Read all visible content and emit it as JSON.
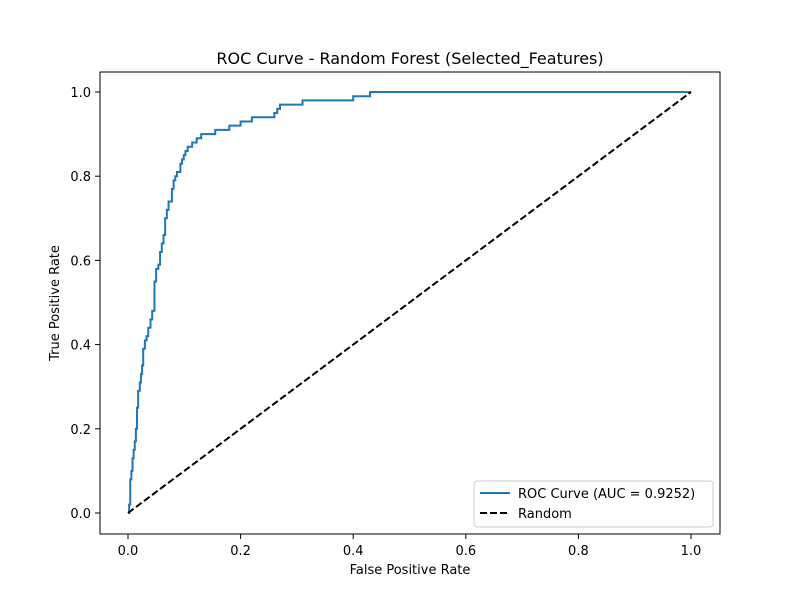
{
  "chart_data": {
    "type": "line",
    "title": "ROC Curve - Random Forest (Selected_Features)",
    "xlabel": "False Positive Rate",
    "ylabel": "True Positive Rate",
    "xlim": [
      0.0,
      1.0
    ],
    "ylim": [
      0.0,
      1.0
    ],
    "xticks": [
      "0.0",
      "0.2",
      "0.4",
      "0.6",
      "0.8",
      "1.0"
    ],
    "yticks": [
      "0.0",
      "0.2",
      "0.4",
      "0.6",
      "0.8",
      "1.0"
    ],
    "grid": false,
    "legend_position": "lower right",
    "series": [
      {
        "name": "ROC Curve (AUC = 0.9252)",
        "color": "#1f77b4",
        "style": "solid",
        "x": [
          0.0,
          0.002,
          0.002,
          0.004,
          0.004,
          0.006,
          0.006,
          0.008,
          0.008,
          0.01,
          0.01,
          0.012,
          0.012,
          0.014,
          0.014,
          0.016,
          0.016,
          0.018,
          0.018,
          0.021,
          0.021,
          0.023,
          0.023,
          0.025,
          0.025,
          0.027,
          0.027,
          0.03,
          0.03,
          0.033,
          0.033,
          0.036,
          0.036,
          0.04,
          0.04,
          0.043,
          0.043,
          0.047,
          0.047,
          0.05,
          0.05,
          0.054,
          0.054,
          0.057,
          0.057,
          0.06,
          0.06,
          0.063,
          0.063,
          0.066,
          0.066,
          0.069,
          0.069,
          0.072,
          0.072,
          0.075,
          0.075,
          0.078,
          0.078,
          0.081,
          0.081,
          0.084,
          0.084,
          0.087,
          0.087,
          0.09,
          0.09,
          0.093,
          0.093,
          0.096,
          0.096,
          0.099,
          0.099,
          0.102,
          0.102,
          0.106,
          0.106,
          0.11,
          0.11,
          0.114,
          0.114,
          0.118,
          0.118,
          0.122,
          0.122,
          0.126,
          0.126,
          0.13,
          0.13,
          0.135,
          0.135,
          0.14,
          0.14,
          0.145,
          0.145,
          0.15,
          0.15,
          0.155,
          0.155,
          0.18,
          0.18,
          0.19,
          0.19,
          0.2,
          0.2,
          0.21,
          0.21,
          0.22,
          0.22,
          0.23,
          0.23,
          0.26,
          0.26,
          0.265,
          0.265,
          0.27,
          0.27,
          0.275,
          0.275,
          0.31,
          0.31,
          0.4,
          0.4,
          0.43,
          0.43,
          1.0
        ],
        "y": [
          0.0,
          0.0,
          0.02,
          0.02,
          0.08,
          0.08,
          0.1,
          0.1,
          0.13,
          0.13,
          0.15,
          0.15,
          0.17,
          0.17,
          0.2,
          0.2,
          0.25,
          0.25,
          0.29,
          0.29,
          0.31,
          0.31,
          0.33,
          0.33,
          0.35,
          0.35,
          0.39,
          0.39,
          0.41,
          0.41,
          0.42,
          0.42,
          0.44,
          0.44,
          0.46,
          0.46,
          0.48,
          0.48,
          0.55,
          0.55,
          0.58,
          0.58,
          0.59,
          0.59,
          0.62,
          0.62,
          0.64,
          0.64,
          0.66,
          0.66,
          0.7,
          0.7,
          0.72,
          0.72,
          0.74,
          0.74,
          0.74,
          0.74,
          0.77,
          0.77,
          0.79,
          0.79,
          0.8,
          0.8,
          0.81,
          0.81,
          0.81,
          0.81,
          0.83,
          0.83,
          0.84,
          0.84,
          0.85,
          0.85,
          0.86,
          0.86,
          0.87,
          0.87,
          0.87,
          0.87,
          0.88,
          0.88,
          0.88,
          0.88,
          0.89,
          0.89,
          0.89,
          0.89,
          0.9,
          0.9,
          0.9,
          0.9,
          0.9,
          0.9,
          0.9,
          0.9,
          0.9,
          0.9,
          0.91,
          0.91,
          0.92,
          0.92,
          0.92,
          0.92,
          0.93,
          0.93,
          0.93,
          0.93,
          0.94,
          0.94,
          0.94,
          0.94,
          0.95,
          0.95,
          0.96,
          0.96,
          0.97,
          0.97,
          0.97,
          0.97,
          0.98,
          0.98,
          0.99,
          0.99,
          1.0,
          1.0
        ]
      },
      {
        "name": "Random",
        "color": "#000000",
        "style": "dashed",
        "x": [
          0.0,
          1.0
        ],
        "y": [
          0.0,
          1.0
        ]
      }
    ]
  }
}
